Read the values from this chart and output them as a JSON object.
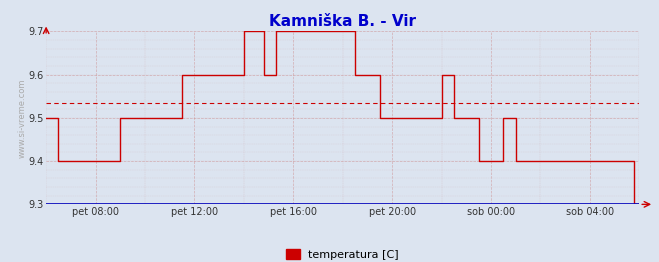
{
  "title": "Kamniška B. - Vir",
  "title_color": "#0000cc",
  "title_fontsize": 11,
  "ylabel_text": "www.si-vreme.com",
  "ylabel_color": "#aaaaaa",
  "background_color": "#dce4f0",
  "plot_bg_color": "#dce4f0",
  "axis_color": "#0000bb",
  "ylim": [
    9.3,
    9.7
  ],
  "yticks": [
    9.3,
    9.4,
    9.5,
    9.6,
    9.7
  ],
  "xlim_hours": [
    6.0,
    30.0
  ],
  "xtick_hours": [
    8,
    12,
    16,
    20,
    24,
    28
  ],
  "xtick_labels": [
    "pet 08:00",
    "pet 12:00",
    "pet 16:00",
    "pet 20:00",
    "sob 00:00",
    "sob 04:00"
  ],
  "mean_line": 9.534,
  "mean_line_color": "#cc0000",
  "line_color": "#cc0000",
  "line_width": 1.0,
  "legend_label": "temperatura [C]",
  "legend_color": "#cc0000",
  "step_x": [
    6.0,
    6.5,
    6.5,
    9.0,
    9.0,
    11.5,
    11.5,
    14.0,
    14.0,
    14.8,
    14.8,
    15.3,
    15.3,
    18.5,
    18.5,
    19.5,
    19.5,
    22.0,
    22.0,
    22.5,
    22.5,
    23.5,
    23.5,
    24.5,
    24.5,
    25.0,
    25.0,
    26.5,
    26.5,
    29.8,
    29.8,
    30.0
  ],
  "step_y": [
    9.5,
    9.5,
    9.4,
    9.4,
    9.5,
    9.5,
    9.6,
    9.6,
    9.7,
    9.7,
    9.6,
    9.6,
    9.7,
    9.7,
    9.6,
    9.6,
    9.5,
    9.5,
    9.6,
    9.6,
    9.5,
    9.5,
    9.4,
    9.4,
    9.5,
    9.5,
    9.4,
    9.4,
    9.4,
    9.4,
    9.3,
    9.3
  ],
  "grid_major_color": "#cc8888",
  "grid_minor_color": "#cc9999",
  "grid_alpha": 0.6
}
